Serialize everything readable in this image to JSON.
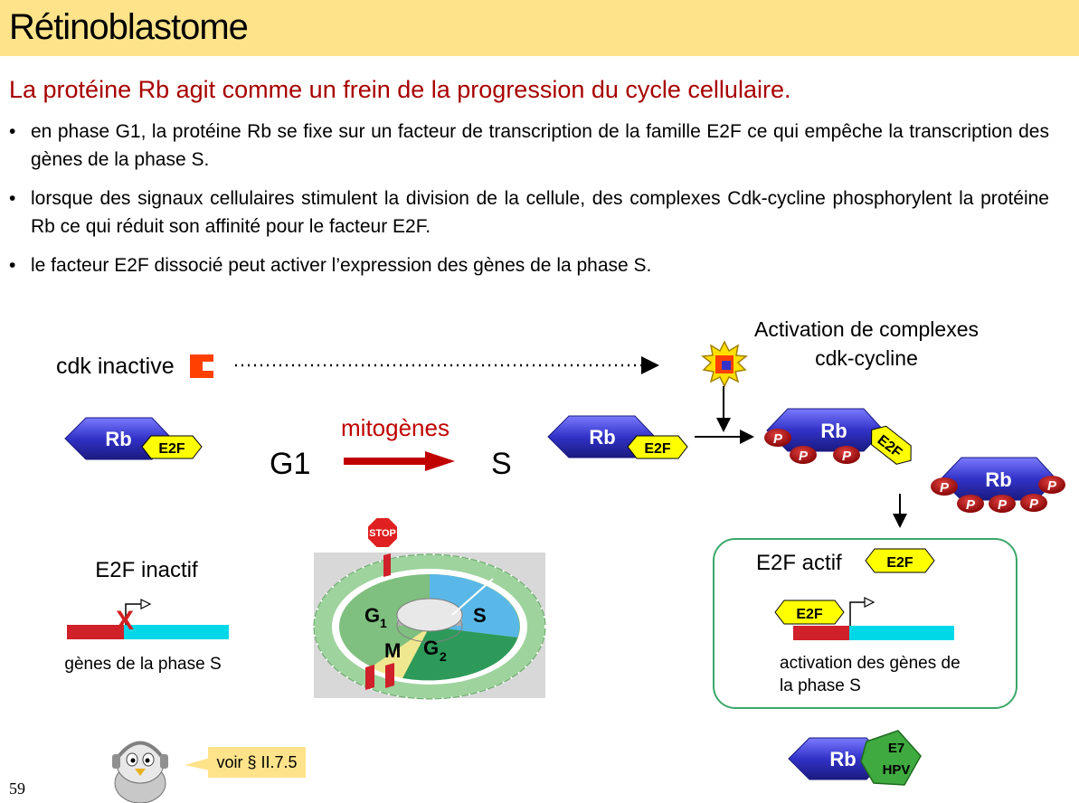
{
  "title": "Rétinoblastome",
  "subtitle": "La protéine Rb agit comme un frein de la progression du cycle cellulaire.",
  "bullets": [
    "en phase G1, la protéine Rb se fixe sur un facteur de transcription de la famille E2F ce qui empêche la transcription des gènes de la phase S.",
    "lorsque des signaux cellulaires stimulent la division de la cellule, des complexes Cdk-cycline phosphorylent la protéine Rb ce qui réduit son affinité pour le facteur E2F.",
    "le facteur E2F dissocié peut activer l’expression des gènes de la phase S."
  ],
  "diagram": {
    "cdk_inactive": "cdk inactive",
    "activation_line1": "Activation de complexes",
    "activation_line2": "cdk-cycline",
    "rb": "Rb",
    "e2f": "E2F",
    "p": "P",
    "g1": "G1",
    "s": "S",
    "mitogenes": "mitogènes",
    "e2f_inactif": "E2F inactif",
    "genes_phase_s": "gènes de la phase S",
    "x_mark": "X",
    "stop": "STOP",
    "cycle_g": "G",
    "cycle_1": "1",
    "cycle_s": "S",
    "cycle_m": "M",
    "cycle_2": "2",
    "e2f_actif": "E2F actif",
    "activation_genes_line1": "activation des gènes de",
    "activation_genes_line2": "la phase S",
    "voir": "voir § II.7.5",
    "e7": "E7",
    "hpv": "HPV"
  },
  "colors": {
    "rb_blue": "#3232c8",
    "e2f_yellow": "#ffff00",
    "p_red": "#a00000",
    "arrow_red": "#c00000",
    "cdk_orange": "#ff4000",
    "gene_red": "#d0202a",
    "gene_cyan": "#00d8e8",
    "box_green": "#3aa86a",
    "e7_green": "#3faa3f",
    "callout_yellow": "#ffe38a",
    "title_band": "#ffe38a"
  },
  "page_number": "59"
}
